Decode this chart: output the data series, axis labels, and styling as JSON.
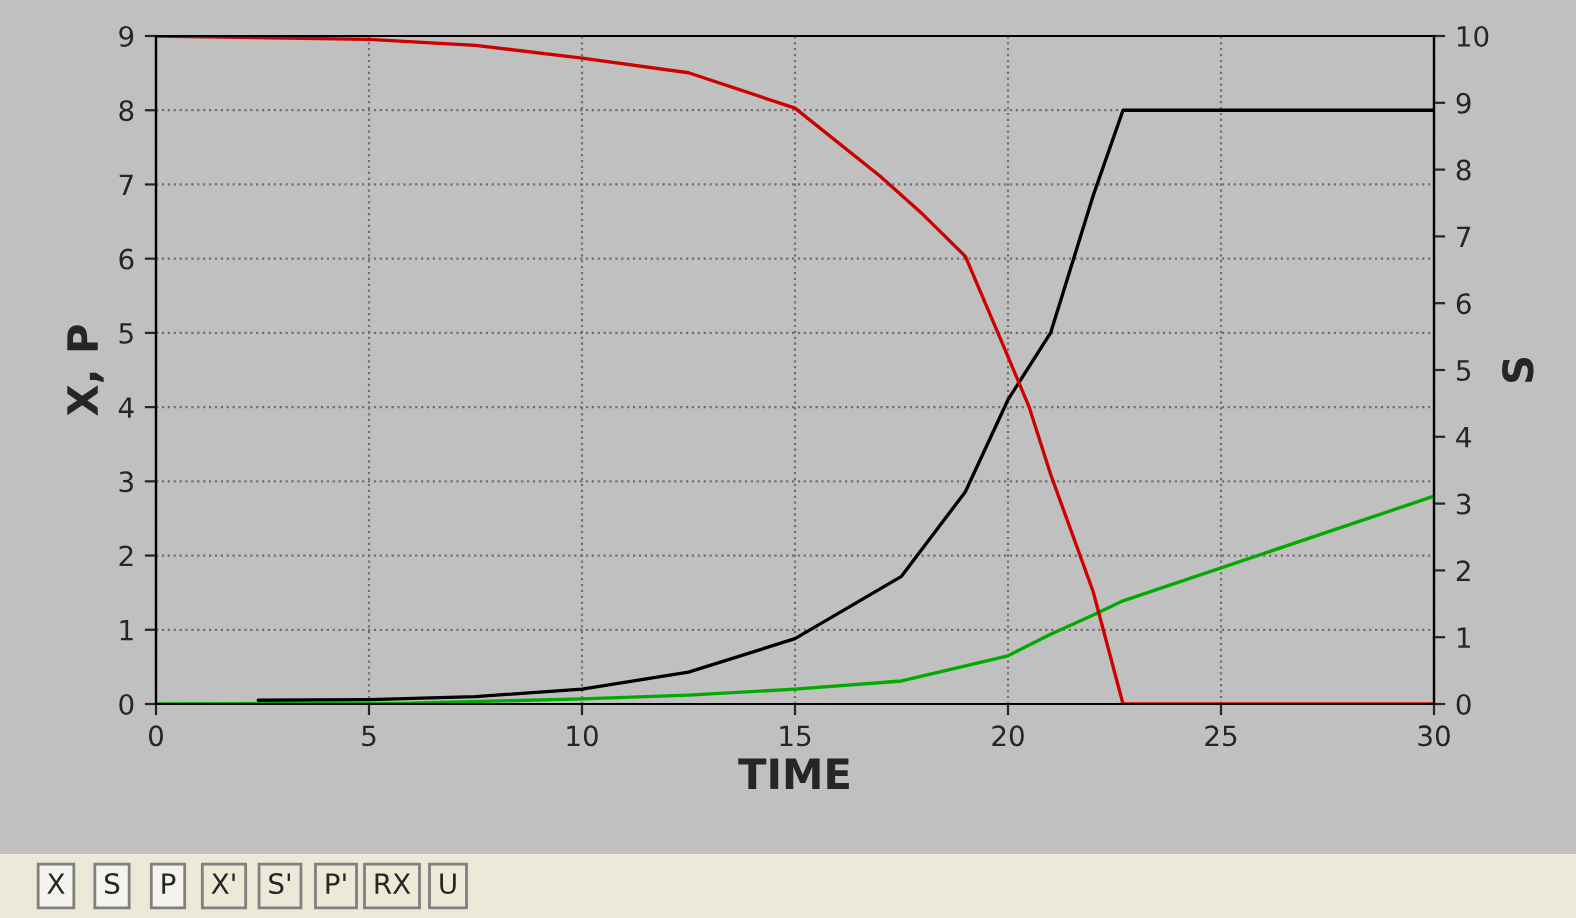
{
  "chart_data": {
    "type": "line",
    "xlabel": "TIME",
    "ylabel": "X, P",
    "y2label": "S",
    "xlim": [
      0,
      30
    ],
    "xticks": [
      0,
      5,
      10,
      15,
      20,
      25,
      30
    ],
    "ylim": [
      0,
      9
    ],
    "yticks": [
      0,
      1,
      2,
      3,
      4,
      5,
      6,
      7,
      8,
      9
    ],
    "y2lim": [
      0,
      10
    ],
    "y2ticks": [
      0,
      1,
      2,
      3,
      4,
      5,
      6,
      7,
      8,
      9,
      10
    ],
    "grid": true,
    "legend": false,
    "line_style": "solid",
    "marker": "none",
    "series": [
      {
        "color": "#000000",
        "x": [
          2.4,
          5,
          7.5,
          10,
          12.5,
          15,
          17.5,
          19,
          20,
          21,
          22,
          22.7,
          30
        ],
        "values": [
          0.05,
          0.06,
          0.1,
          0.2,
          0.43,
          0.88,
          1.72,
          2.86,
          4.1,
          5.0,
          6.85,
          8.0,
          8.0
        ]
      },
      {
        "color": "#cc0000",
        "axis": "y2",
        "x": [
          0,
          5,
          7.5,
          10,
          12.5,
          15,
          17,
          18,
          19,
          20,
          20.5,
          21,
          22,
          22.7,
          30
        ],
        "values": [
          10,
          9.95,
          9.86,
          9.67,
          9.45,
          8.92,
          7.9,
          7.33,
          6.7,
          5.2,
          4.44,
          3.44,
          1.68,
          0,
          0
        ]
      },
      {
        "color": "#00aa00",
        "x": [
          0,
          6,
          10,
          12.5,
          15,
          17.5,
          20,
          21,
          22,
          22.7,
          30
        ],
        "values": [
          0,
          0.01,
          0.07,
          0.12,
          0.2,
          0.31,
          0.65,
          0.94,
          1.2,
          1.39,
          2.8
        ]
      }
    ],
    "annotations": [
      "X",
      "S",
      "P",
      "X'",
      "S'",
      "P'",
      "RX",
      "U"
    ]
  }
}
